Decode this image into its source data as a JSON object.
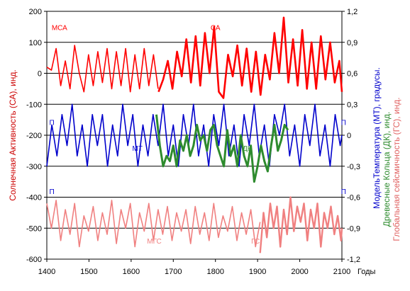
{
  "chart_data": {
    "type": "line",
    "title": "",
    "xlabel": "Годы",
    "x_ticks": [
      1400,
      1500,
      1600,
      1700,
      1800,
      1900,
      2000,
      2100
    ],
    "xlim": [
      1400,
      2100
    ],
    "ylim_left": [
      -600,
      200
    ],
    "y_ticks_left": [
      200,
      100,
      0,
      -100,
      -200,
      -300,
      -400,
      -500,
      -600
    ],
    "ylim_right": [
      -1.2,
      1.2
    ],
    "y_ticks_right": [
      "1,2",
      "0,9",
      "0,6",
      "0,3",
      "0",
      "-0,3",
      "-0,6",
      "-0,9",
      "-1,2"
    ],
    "ylabel_left": "Солнечная Активность (СА), инд.",
    "ylabel_right_1": "МодельТемпература (МТ), градусы.",
    "ylabel_right_2": "Древесные Кольца (ДК), инд.",
    "ylabel_right_3": "Глобальная сейсмичность (ГС), инд.",
    "grid": true,
    "colors": {
      "sa": "#ff0000",
      "mt": "#0000cc",
      "dk": "#2e8b2e",
      "gs": "#f08080",
      "axis_title_sa": "#cc0000",
      "axis_title_mt": "#0000cc",
      "axis_title_dk": "#2e8b2e",
      "axis_title_gs": "#e06060"
    },
    "series": [
      {
        "name": "МСА",
        "axis": "left",
        "x": [
          1400,
          1411,
          1422,
          1433,
          1444,
          1455,
          1466,
          1477,
          1488,
          1499,
          1510,
          1521,
          1532,
          1543,
          1554,
          1565,
          1576,
          1587,
          1598,
          1609,
          1620,
          1631,
          1642,
          1653,
          1664
        ],
        "y": [
          20,
          10,
          80,
          -40,
          40,
          -50,
          90,
          0,
          -60,
          60,
          -40,
          70,
          -30,
          80,
          -50,
          70,
          -40,
          80,
          -60,
          60,
          -50,
          80,
          -40,
          60,
          -50
        ]
      },
      {
        "name": "СА",
        "axis": "left",
        "x": [
          1665,
          1676,
          1687,
          1698,
          1709,
          1720,
          1731,
          1742,
          1753,
          1764,
          1775,
          1786,
          1797,
          1808,
          1819,
          1830,
          1841,
          1852,
          1863,
          1874,
          1885,
          1896,
          1907,
          1918,
          1929,
          1940,
          1951,
          1962,
          1973,
          1984,
          1995,
          2006,
          2017,
          2028,
          2039,
          2050,
          2061,
          2072,
          2083,
          2094,
          2100
        ],
        "y": [
          -60,
          -20,
          40,
          -50,
          70,
          -10,
          110,
          -30,
          120,
          -40,
          130,
          0,
          150,
          -60,
          -80,
          60,
          -10,
          90,
          -40,
          80,
          -60,
          70,
          -70,
          60,
          -20,
          130,
          0,
          180,
          -30,
          110,
          -40,
          140,
          -50,
          100,
          -50,
          120,
          -20,
          100,
          -30,
          40,
          -60
        ]
      },
      {
        "name": "МТ",
        "axis": "right",
        "x": [
          1400,
          1412,
          1424,
          1436,
          1448,
          1460,
          1472,
          1484,
          1496,
          1508,
          1520,
          1532,
          1544,
          1556,
          1568,
          1580,
          1592,
          1604,
          1616,
          1628,
          1640,
          1652,
          1664,
          1676,
          1688,
          1700,
          1712,
          1724,
          1736,
          1748,
          1760,
          1772,
          1784,
          1796,
          1808,
          1820,
          1832,
          1844,
          1856,
          1868,
          1880,
          1892,
          1904,
          1916,
          1928,
          1940,
          1952,
          1964,
          1976,
          1988,
          2000,
          2012,
          2024,
          2036,
          2048,
          2060,
          2072,
          2084,
          2096,
          2100
        ],
        "y": [
          -0.3,
          0.1,
          -0.2,
          0.2,
          -0.1,
          0.3,
          -0.2,
          0.1,
          -0.3,
          0.2,
          -0.1,
          0.2,
          -0.3,
          0.1,
          -0.2,
          0.3,
          -0.1,
          0.2,
          -0.3,
          0.1,
          -0.2,
          0.2,
          -0.1,
          0.3,
          -0.2,
          0.1,
          -0.3,
          0.2,
          -0.1,
          0.3,
          -0.2,
          0.1,
          -0.3,
          0.2,
          -0.1,
          0.3,
          -0.2,
          0.1,
          -0.3,
          0.2,
          -0.1,
          0.3,
          -0.2,
          0.1,
          -0.3,
          0.2,
          0.0,
          0.3,
          -0.2,
          0.1,
          -0.3,
          0.2,
          -0.1,
          0.3,
          -0.2,
          0.1,
          -0.3,
          0.2,
          -0.1,
          0.0
        ]
      },
      {
        "name": "ДК",
        "axis": "right",
        "x": [
          1660,
          1668,
          1676,
          1684,
          1692,
          1700,
          1708,
          1716,
          1724,
          1732,
          1740,
          1748,
          1756,
          1764,
          1772,
          1780,
          1788,
          1796,
          1804,
          1812,
          1820,
          1828,
          1836,
          1844,
          1852,
          1860,
          1868,
          1876,
          1884,
          1892,
          1900,
          1908,
          1916,
          1924,
          1932,
          1940,
          1948,
          1956,
          1964,
          1972
        ],
        "y": [
          0.2,
          -0.1,
          -0.3,
          -0.2,
          -0.25,
          -0.1,
          -0.3,
          -0.05,
          -0.15,
          0.0,
          -0.2,
          -0.1,
          0.1,
          -0.05,
          0.0,
          -0.15,
          0.05,
          0.1,
          -0.1,
          -0.2,
          -0.3,
          0.05,
          -0.2,
          -0.1,
          -0.3,
          0.0,
          -0.2,
          -0.3,
          -0.1,
          -0.45,
          -0.3,
          -0.1,
          -0.25,
          -0.35,
          -0.1,
          0.1,
          -0.15,
          -0.05,
          0.1,
          0.05
        ]
      },
      {
        "name": "МГС",
        "axis": "left",
        "x": [
          1400,
          1411,
          1422,
          1433,
          1444,
          1455,
          1466,
          1477,
          1488,
          1499,
          1510,
          1521,
          1532,
          1543,
          1554,
          1565,
          1576,
          1587,
          1598,
          1609,
          1620,
          1631,
          1642,
          1653,
          1664,
          1675,
          1686,
          1697,
          1708,
          1719,
          1730,
          1741,
          1752,
          1763,
          1774,
          1785,
          1796,
          1807,
          1818,
          1829,
          1840,
          1851,
          1862,
          1873,
          1884,
          1895,
          1906
        ],
        "y": [
          -420,
          -500,
          -410,
          -540,
          -440,
          -520,
          -420,
          -560,
          -460,
          -510,
          -430,
          -540,
          -450,
          -520,
          -410,
          -550,
          -440,
          -500,
          -420,
          -560,
          -450,
          -510,
          -420,
          -540,
          -440,
          -520,
          -430,
          -540,
          -450,
          -510,
          -440,
          -550,
          -430,
          -520,
          -450,
          -540,
          -420,
          -530,
          -460,
          -510,
          -430,
          -540,
          -450,
          -520,
          -440,
          -560,
          -480
        ]
      },
      {
        "name": "ГС",
        "axis": "left",
        "x": [
          1906,
          1914,
          1922,
          1930,
          1938,
          1946,
          1954,
          1962,
          1970,
          1978,
          1986,
          1994,
          2002,
          2010,
          2018,
          2026,
          2034,
          2042,
          2050,
          2058,
          2066,
          2074,
          2082,
          2090,
          2098,
          2100
        ],
        "y": [
          -580,
          -450,
          -530,
          -420,
          -500,
          -430,
          -560,
          -440,
          -520,
          -400,
          -510,
          -430,
          -480,
          -420,
          -540,
          -440,
          -500,
          -420,
          -560,
          -450,
          -500,
          -430,
          -520,
          -460,
          -540,
          -500
        ]
      }
    ],
    "annotations": [
      {
        "text": "МСА",
        "color": "#ff0000",
        "x": 1430,
        "y": 140
      },
      {
        "text": "СА",
        "color": "#ff0000",
        "x": 1800,
        "y": 140
      },
      {
        "text": "МТ",
        "color": "#0000cc",
        "x": 1615,
        "y": -0.15
      },
      {
        "text": "ДК",
        "color": "#2e8b2e",
        "x": 1875,
        "y": -0.15
      },
      {
        "text": "П",
        "color": "#0000cc",
        "x": 1412,
        "y": 0.1
      },
      {
        "text": "П",
        "color": "#0000cc",
        "x": 1412,
        "y": -0.57
      },
      {
        "text": "П",
        "color": "#0000cc",
        "x": 2104,
        "y": 0.1
      },
      {
        "text": "П",
        "color": "#0000cc",
        "x": 2104,
        "y": -0.57
      },
      {
        "text": "МГС",
        "color": "#f08080",
        "x": 1655,
        "y": -550
      },
      {
        "text": "ГС",
        "color": "#f08080",
        "x": 1895,
        "y": -550
      }
    ]
  }
}
